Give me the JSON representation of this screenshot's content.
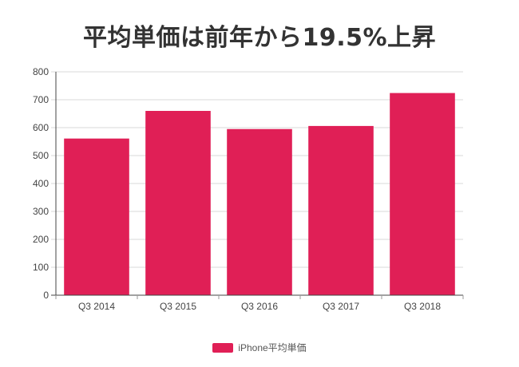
{
  "chart_data": {
    "type": "bar",
    "title": "平均単価は前年から19.5%上昇",
    "categories": [
      "Q3 2014",
      "Q3 2015",
      "Q3 2016",
      "Q3 2017",
      "Q3 2018"
    ],
    "series": [
      {
        "name": "iPhone平均単価",
        "values": [
          561,
          660,
          595,
          606,
          724
        ],
        "color": "#e01f56"
      }
    ],
    "yticks": [
      0,
      100,
      200,
      300,
      400,
      500,
      600,
      700,
      800
    ],
    "ylim": [
      0,
      800
    ],
    "xlabel": "",
    "ylabel": "",
    "grid": "horizontal",
    "legend_position": "bottom-center"
  }
}
